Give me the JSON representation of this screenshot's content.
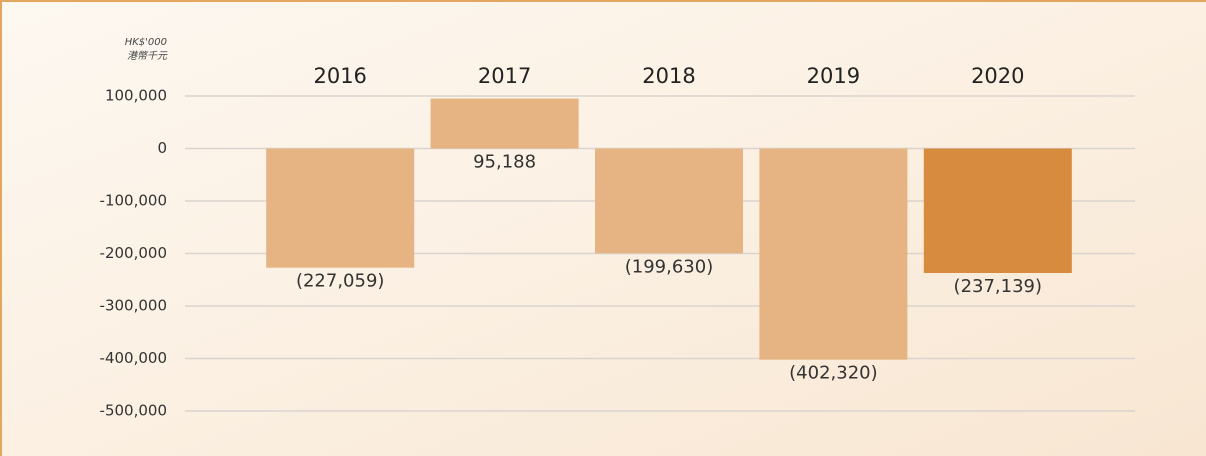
{
  "chart_data": {
    "type": "bar",
    "unit_label": [
      "HK$'000",
      "港幣千元"
    ],
    "categories": [
      "2016",
      "2017",
      "2018",
      "2019",
      "2020"
    ],
    "values": [
      -227059,
      95188,
      -199630,
      -402320,
      -237139
    ],
    "value_labels": [
      "(227,059)",
      "95,188",
      "(199,630)",
      "(402,320)",
      "(237,139)"
    ],
    "colors": [
      "#e6b482",
      "#e6b482",
      "#e6b482",
      "#e6b482",
      "#d68b3e"
    ],
    "ylim": [
      -500000,
      100000
    ],
    "yticks": [
      {
        "value": 100000,
        "label": "100,000"
      },
      0,
      {
        "value": -100000,
        "label": "-100,000"
      },
      {
        "value": -200000,
        "label": "-200,000"
      },
      {
        "value": -300000,
        "label": "-300,000"
      },
      {
        "value": -400000,
        "label": "-400,000"
      },
      {
        "value": -500000,
        "label": "-500,000"
      }
    ],
    "grid": true
  }
}
